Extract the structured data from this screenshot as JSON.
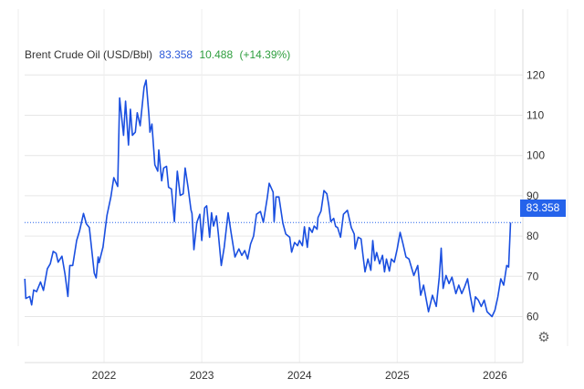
{
  "chart_data": {
    "type": "line",
    "title": "Brent Crude Oil (USD/Bbl)",
    "last_value": "83.358",
    "change": "10.488",
    "change_pct": "(+14.39%)",
    "xlim": [
      2021.19,
      2026.28
    ],
    "ylim": [
      48.6,
      127
    ],
    "yticks": [
      60,
      70,
      80,
      90,
      100,
      110,
      120
    ],
    "ytick_labels": [
      "60",
      "70",
      "80",
      "90",
      "100",
      "110",
      "120"
    ],
    "xticks": [
      2022,
      2023,
      2024,
      2025,
      2026
    ],
    "xtick_labels": [
      "2022",
      "2023",
      "2024",
      "2025",
      "2026"
    ],
    "grid": true,
    "colors": {
      "line": "#1a4fe0",
      "up": "#2e9e3e",
      "label_bg": "#2563eb"
    },
    "series": [
      {
        "name": "Brent Crude Oil",
        "x": [
          2021.19,
          2021.2,
          2021.24,
          2021.26,
          2021.28,
          2021.31,
          2021.35,
          2021.38,
          2021.42,
          2021.45,
          2021.48,
          2021.51,
          2021.53,
          2021.57,
          2021.6,
          2021.63,
          2021.65,
          2021.68,
          2021.72,
          2021.75,
          2021.79,
          2021.82,
          2021.85,
          2021.9,
          2021.92,
          2021.94,
          2021.95,
          2021.99,
          2022.03,
          2022.07,
          2022.1,
          2022.14,
          2022.16,
          2022.2,
          2022.22,
          2022.25,
          2022.27,
          2022.29,
          2022.32,
          2022.34,
          2022.37,
          2022.41,
          2022.43,
          2022.46,
          2022.47,
          2022.49,
          2022.52,
          2022.55,
          2022.56,
          2022.59,
          2022.61,
          2022.64,
          2022.66,
          2022.69,
          2022.72,
          2022.75,
          2022.78,
          2022.81,
          2022.83,
          2022.86,
          2022.89,
          2022.9,
          2022.92,
          2022.95,
          2022.98,
          2023.0,
          2023.03,
          2023.05,
          2023.08,
          2023.1,
          2023.12,
          2023.15,
          2023.17,
          2023.2,
          2023.23,
          2023.27,
          2023.3,
          2023.34,
          2023.38,
          2023.41,
          2023.44,
          2023.47,
          2023.5,
          2023.53,
          2023.56,
          2023.6,
          2023.63,
          2023.67,
          2023.69,
          2023.73,
          2023.74,
          2023.76,
          2023.79,
          2023.83,
          2023.86,
          2023.9,
          2023.92,
          2023.95,
          2023.98,
          2024.0,
          2024.03,
          2024.05,
          2024.08,
          2024.1,
          2024.13,
          2024.15,
          2024.18,
          2024.19,
          2024.22,
          2024.24,
          2024.25,
          2024.28,
          2024.3,
          2024.32,
          2024.35,
          2024.37,
          2024.39,
          2024.42,
          2024.45,
          2024.49,
          2024.53,
          2024.56,
          2024.57,
          2024.6,
          2024.63,
          2024.65,
          2024.67,
          2024.7,
          2024.73,
          2024.75,
          2024.77,
          2024.79,
          2024.82,
          2024.85,
          2024.87,
          2024.89,
          2024.92,
          2024.94,
          2024.97,
          2025.0,
          2025.03,
          2025.06,
          2025.09,
          2025.12,
          2025.17,
          2025.21,
          2025.24,
          2025.27,
          2025.32,
          2025.36,
          2025.4,
          2025.43,
          2025.45,
          2025.47,
          2025.5,
          2025.53,
          2025.56,
          2025.6,
          2025.63,
          2025.66,
          2025.69,
          2025.72,
          2025.75,
          2025.78,
          2025.8,
          2025.83,
          2025.86,
          2025.89,
          2025.92,
          2025.97,
          2026.0,
          2026.03,
          2026.06,
          2026.09,
          2026.12,
          2026.14,
          2026.16
        ],
        "y": [
          69.4,
          64.5,
          65.0,
          62.9,
          66.6,
          66.2,
          68.6,
          66.5,
          71.9,
          73.1,
          76.2,
          75.7,
          73.5,
          75.0,
          70.6,
          65.0,
          72.7,
          72.7,
          78.9,
          81.3,
          85.6,
          83.0,
          82.1,
          70.8,
          69.6,
          74.8,
          73.4,
          77.3,
          85.1,
          89.7,
          94.5,
          92.3,
          114.3,
          105.0,
          113.5,
          102.6,
          111.5,
          105.0,
          105.8,
          110.6,
          107.4,
          117.0,
          118.7,
          109.8,
          105.8,
          107.8,
          97.7,
          96.1,
          101.4,
          93.7,
          96.9,
          97.3,
          92.1,
          91.7,
          83.6,
          96.1,
          90.1,
          90.5,
          96.9,
          92.1,
          86.5,
          85.6,
          76.6,
          83.4,
          85.4,
          78.9,
          87.0,
          87.5,
          79.7,
          85.8,
          82.5,
          85.0,
          80.5,
          72.7,
          77.2,
          85.8,
          80.9,
          74.8,
          76.8,
          75.2,
          76.4,
          74.3,
          78.0,
          80.0,
          85.4,
          86.1,
          83.4,
          89.5,
          93.1,
          90.9,
          83.6,
          89.7,
          89.7,
          83.2,
          80.5,
          79.7,
          76.0,
          78.4,
          77.6,
          78.9,
          77.6,
          82.3,
          77.2,
          82.1,
          80.9,
          82.5,
          81.7,
          84.6,
          86.2,
          89.5,
          91.3,
          90.5,
          87.7,
          83.6,
          84.4,
          82.4,
          82.1,
          79.7,
          85.4,
          86.4,
          82.1,
          80.5,
          76.8,
          79.7,
          79.3,
          75.2,
          71.1,
          74.3,
          71.5,
          78.9,
          73.9,
          75.9,
          73.1,
          75.2,
          71.1,
          74.3,
          71.3,
          74.3,
          73.5,
          76.8,
          80.9,
          78.0,
          74.8,
          74.3,
          70.2,
          72.7,
          65.3,
          67.8,
          61.2,
          65.3,
          62.5,
          69.8,
          77.0,
          67.0,
          70.2,
          68.2,
          69.8,
          65.7,
          67.8,
          65.7,
          67.4,
          69.4,
          64.9,
          61.2,
          64.9,
          64.1,
          62.5,
          64.1,
          61.2,
          60.0,
          61.6,
          64.9,
          69.4,
          67.8,
          72.7,
          72.3,
          83.358
        ]
      }
    ]
  }
}
